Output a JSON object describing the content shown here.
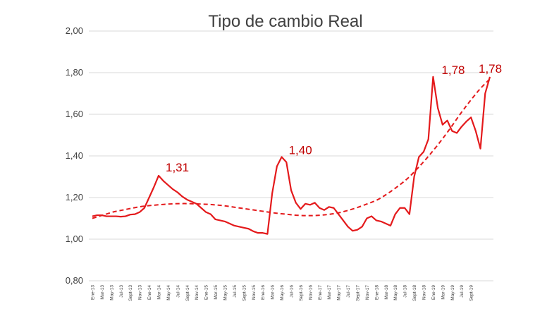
{
  "chart_data": {
    "type": "line",
    "title": "Tipo de cambio Real",
    "xlabel": "",
    "ylabel": "",
    "ylim": [
      0.8,
      2.0
    ],
    "y_ticks": [
      "0,80",
      "1,00",
      "1,20",
      "1,40",
      "1,60",
      "1,80",
      "2,00"
    ],
    "grid": "horizontal",
    "legend": "none",
    "x_tick_labels": [
      "Ene-13",
      "Mar-13",
      "May-13",
      "Jul-13",
      "Sept-13",
      "Nov-13",
      "Ene-14",
      "Mar-14",
      "May-14",
      "Jul-14",
      "Sept-14",
      "Nov-14",
      "Ene-15",
      "Mar-15",
      "May-15",
      "Jul-15",
      "Sept-15",
      "Nov-15",
      "Ene-16",
      "Mar-16",
      "May-16",
      "Jul-16",
      "Sept-16",
      "Nov-16",
      "Ene-17",
      "Mar-17",
      "May-17",
      "Jul-17",
      "Sept-17",
      "Nov-17",
      "Ene-18",
      "Mar-18",
      "May-18",
      "Jul-18",
      "Sept-18",
      "Nov-18",
      "Ene-19",
      "Mar-19",
      "May-19",
      "Jul-19",
      "Sept-19"
    ],
    "series": [
      {
        "style": "solid",
        "color": "#e41a1c",
        "values": [
          1.11,
          1.115,
          1.115,
          1.11,
          1.11,
          1.11,
          1.108,
          1.11,
          1.118,
          1.12,
          1.13,
          1.15,
          1.2,
          1.25,
          1.305,
          1.28,
          1.26,
          1.24,
          1.225,
          1.205,
          1.19,
          1.18,
          1.17,
          1.15,
          1.13,
          1.12,
          1.095,
          1.09,
          1.085,
          1.075,
          1.065,
          1.06,
          1.055,
          1.05,
          1.038,
          1.03,
          1.03,
          1.025,
          1.22,
          1.35,
          1.395,
          1.37,
          1.235,
          1.175,
          1.145,
          1.17,
          1.165,
          1.175,
          1.15,
          1.14,
          1.155,
          1.15,
          1.12,
          1.09,
          1.06,
          1.04,
          1.045,
          1.06,
          1.1,
          1.11,
          1.09,
          1.085,
          1.075,
          1.065,
          1.12,
          1.15,
          1.15,
          1.12,
          1.3,
          1.395,
          1.42,
          1.48,
          1.78,
          1.63,
          1.55,
          1.57,
          1.52,
          1.51,
          1.54,
          1.565,
          1.585,
          1.52,
          1.435,
          1.7,
          1.78
        ]
      },
      {
        "style": "dashed",
        "color": "#e41a1c",
        "values": [
          1.1,
          1.115,
          1.13,
          1.14,
          1.15,
          1.158,
          1.163,
          1.167,
          1.17,
          1.171,
          1.17,
          1.168,
          1.165,
          1.16,
          1.153,
          1.146,
          1.139,
          1.132,
          1.125,
          1.12,
          1.115,
          1.113,
          1.114,
          1.118,
          1.125,
          1.137,
          1.152,
          1.17,
          1.19,
          1.22,
          1.255,
          1.295,
          1.345,
          1.4,
          1.46,
          1.525,
          1.595,
          1.66,
          1.72,
          1.77
        ]
      }
    ],
    "annotations": [
      {
        "text": "1,31",
        "index": 14,
        "value": 1.305
      },
      {
        "text": "1,40",
        "index": 40,
        "value": 1.395
      },
      {
        "text": "1,78",
        "index": 72,
        "value": 1.78
      },
      {
        "text": "1,78",
        "index": 84,
        "value": 1.78
      }
    ]
  }
}
